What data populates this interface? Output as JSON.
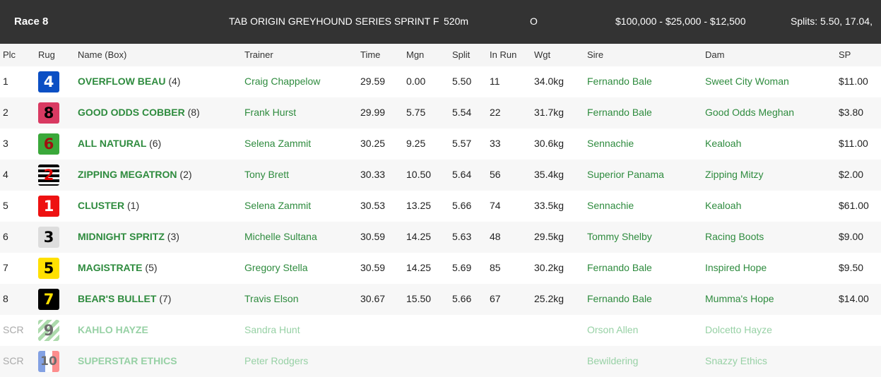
{
  "header": {
    "race": "Race 8",
    "title": "TAB ORIGIN GREYHOUND SERIES SPRINT F",
    "distance": "520m",
    "grade": "O",
    "prizes": "$100,000 - $25,000 - $12,500",
    "splits": "Splits: 5.50, 17.04,"
  },
  "columns": {
    "plc": "Plc",
    "rug": "Rug",
    "name": "Name (Box)",
    "trainer": "Trainer",
    "time": "Time",
    "mgn": "Mgn",
    "split": "Split",
    "inrun": "In Run",
    "wgt": "Wgt",
    "sire": "Sire",
    "dam": "Dam",
    "sp": "SP"
  },
  "rows": [
    {
      "plc": "1",
      "rug": "4",
      "rug_bg": "#0b4fc4",
      "rug_fg": "#ffffff",
      "name": "OVERFLOW BEAU",
      "box": "(4)",
      "trainer": "Craig Chappelow",
      "time": "29.59",
      "mgn": "0.00",
      "split": "5.50",
      "inrun": "11",
      "wgt": "34.0kg",
      "sire": "Fernando Bale",
      "dam": "Sweet City Woman",
      "sp": "$11.00"
    },
    {
      "plc": "2",
      "rug": "8",
      "rug_bg": "#d93a62",
      "rug_fg": "#000000",
      "name": "GOOD ODDS COBBER",
      "box": "(8)",
      "trainer": "Frank Hurst",
      "time": "29.99",
      "mgn": "5.75",
      "split": "5.54",
      "inrun": "22",
      "wgt": "31.7kg",
      "sire": "Fernando Bale",
      "dam": "Good Odds Meghan",
      "sp": "$3.80"
    },
    {
      "plc": "3",
      "rug": "6",
      "rug_bg": "#3aa83a",
      "rug_fg": "#a01010",
      "name": "ALL NATURAL",
      "box": "(6)",
      "trainer": "Selena Zammit",
      "time": "30.25",
      "mgn": "9.25",
      "split": "5.57",
      "inrun": "33",
      "wgt": "30.6kg",
      "sire": "Sennachie",
      "dam": "Kealoah",
      "sp": "$11.00"
    },
    {
      "plc": "4",
      "rug": "2",
      "rug_bg": "stripes-black-white",
      "rug_fg": "#e00000",
      "name": "ZIPPING MEGATRON",
      "box": "(2)",
      "trainer": "Tony Brett",
      "time": "30.33",
      "mgn": "10.50",
      "split": "5.64",
      "inrun": "56",
      "wgt": "35.4kg",
      "sire": "Superior Panama",
      "dam": "Zipping Mitzy",
      "sp": "$2.00"
    },
    {
      "plc": "5",
      "rug": "1",
      "rug_bg": "#ee1111",
      "rug_fg": "#ffffff",
      "name": "CLUSTER",
      "box": "(1)",
      "trainer": "Selena Zammit",
      "time": "30.53",
      "mgn": "13.25",
      "split": "5.66",
      "inrun": "74",
      "wgt": "33.5kg",
      "sire": "Sennachie",
      "dam": "Kealoah",
      "sp": "$61.00"
    },
    {
      "plc": "6",
      "rug": "3",
      "rug_bg": "#dddddd",
      "rug_fg": "#000000",
      "name": "MIDNIGHT SPRITZ",
      "box": "(3)",
      "trainer": "Michelle Sultana",
      "time": "30.59",
      "mgn": "14.25",
      "split": "5.63",
      "inrun": "48",
      "wgt": "29.5kg",
      "sire": "Tommy Shelby",
      "dam": "Racing Boots",
      "sp": "$9.00"
    },
    {
      "plc": "7",
      "rug": "5",
      "rug_bg": "#ffe000",
      "rug_fg": "#000000",
      "name": "MAGISTRATE",
      "box": "(5)",
      "trainer": "Gregory Stella",
      "time": "30.59",
      "mgn": "14.25",
      "split": "5.69",
      "inrun": "85",
      "wgt": "30.2kg",
      "sire": "Fernando Bale",
      "dam": "Inspired Hope",
      "sp": "$9.50"
    },
    {
      "plc": "8",
      "rug": "7",
      "rug_bg": "#000000",
      "rug_fg": "#ffe000",
      "name": "BEAR'S BULLET",
      "box": "(7)",
      "trainer": "Travis Elson",
      "time": "30.67",
      "mgn": "15.50",
      "split": "5.66",
      "inrun": "67",
      "wgt": "25.2kg",
      "sire": "Fernando Bale",
      "dam": "Mumma's Hope",
      "sp": "$14.00"
    },
    {
      "plc": "SCR",
      "rug": "9",
      "rug_bg": "stripes-green-white",
      "rug_fg": "#555555",
      "name": "KAHLO HAYZE",
      "box": "",
      "trainer": "Sandra Hunt",
      "time": "",
      "mgn": "",
      "split": "",
      "inrun": "",
      "wgt": "",
      "sire": "Orson Allen",
      "dam": "Dolcetto Hayze",
      "sp": ""
    },
    {
      "plc": "SCR",
      "rug": "10",
      "rug_bg": "split-blue-red",
      "rug_fg": "#555555",
      "name": "SUPERSTAR ETHICS",
      "box": "",
      "trainer": "Peter Rodgers",
      "time": "",
      "mgn": "",
      "split": "",
      "inrun": "",
      "wgt": "",
      "sire": "Bewildering",
      "dam": "Snazzy Ethics",
      "sp": ""
    }
  ]
}
